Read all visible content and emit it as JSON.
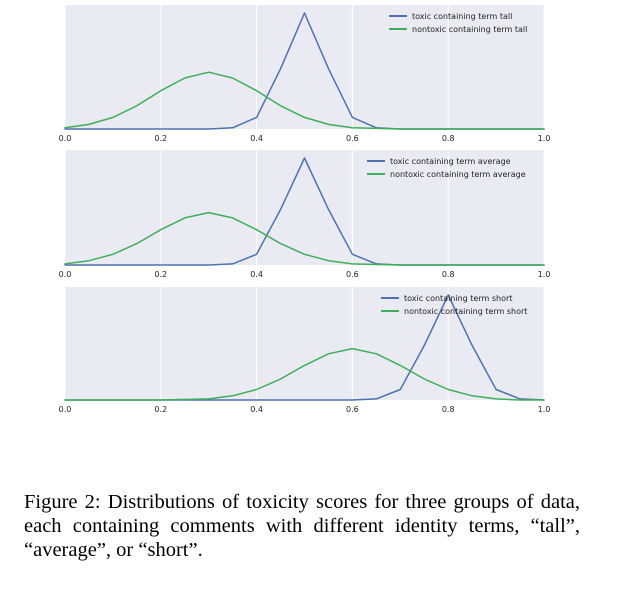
{
  "figure": {
    "caption": "Figure 2: Distributions of toxicity scores for three groups of data, each containing comments with different identity terms, “tall”, “average”, or “short”."
  },
  "colors": {
    "toxic": "#4c72b0",
    "nontoxic": "#3fae5a",
    "panel_bg": "#eaeaf2",
    "grid": "#ffffff"
  },
  "chart_data": [
    {
      "type": "line",
      "x_range": [
        0.0,
        1.0
      ],
      "xticks": [
        "0.0",
        "0.2",
        "0.4",
        "0.6",
        "0.8",
        "1.0"
      ],
      "xtick_values": [
        0.0,
        0.2,
        0.4,
        0.6,
        0.8,
        1.0
      ],
      "grid": true,
      "legend_position": "top-right",
      "series": [
        {
          "name": "toxic containing term tall",
          "color": "#4c72b0",
          "x": [
            0.0,
            0.1,
            0.2,
            0.3,
            0.35,
            0.4,
            0.45,
            0.5,
            0.55,
            0.6,
            0.65,
            0.7,
            0.8,
            0.9,
            1.0
          ],
          "y": [
            0.0,
            0.0,
            0.0,
            0.0,
            0.01,
            0.1,
            0.52,
            1.0,
            0.52,
            0.1,
            0.01,
            0.0,
            0.0,
            0.0,
            0.0
          ]
        },
        {
          "name": "nontoxic containing term tall",
          "color": "#3fae5a",
          "x": [
            0.0,
            0.05,
            0.1,
            0.15,
            0.2,
            0.25,
            0.3,
            0.35,
            0.4,
            0.45,
            0.5,
            0.55,
            0.6,
            0.7,
            0.8,
            0.9,
            1.0
          ],
          "y": [
            0.01,
            0.04,
            0.1,
            0.2,
            0.33,
            0.44,
            0.49,
            0.44,
            0.33,
            0.2,
            0.1,
            0.04,
            0.01,
            0.0,
            0.0,
            0.0,
            0.0
          ]
        }
      ]
    },
    {
      "type": "line",
      "x_range": [
        0.0,
        1.0
      ],
      "xticks": [
        "0.0",
        "0.2",
        "0.4",
        "0.6",
        "0.8",
        "1.0"
      ],
      "xtick_values": [
        0.0,
        0.2,
        0.4,
        0.6,
        0.8,
        1.0
      ],
      "grid": true,
      "legend_position": "top-right",
      "series": [
        {
          "name": "toxic containing term average",
          "color": "#4c72b0",
          "x": [
            0.0,
            0.1,
            0.2,
            0.3,
            0.35,
            0.4,
            0.45,
            0.5,
            0.55,
            0.6,
            0.65,
            0.7,
            0.8,
            0.9,
            1.0
          ],
          "y": [
            0.0,
            0.0,
            0.0,
            0.0,
            0.01,
            0.1,
            0.52,
            1.0,
            0.52,
            0.1,
            0.01,
            0.0,
            0.0,
            0.0,
            0.0
          ]
        },
        {
          "name": "nontoxic containing term average",
          "color": "#3fae5a",
          "x": [
            0.0,
            0.05,
            0.1,
            0.15,
            0.2,
            0.25,
            0.3,
            0.35,
            0.4,
            0.45,
            0.5,
            0.55,
            0.6,
            0.7,
            0.8,
            0.9,
            1.0
          ],
          "y": [
            0.01,
            0.04,
            0.1,
            0.2,
            0.33,
            0.44,
            0.49,
            0.44,
            0.33,
            0.2,
            0.1,
            0.04,
            0.01,
            0.0,
            0.0,
            0.0,
            0.0
          ]
        }
      ]
    },
    {
      "type": "line",
      "x_range": [
        0.0,
        1.0
      ],
      "xticks": [
        "0.0",
        "0.2",
        "0.4",
        "0.6",
        "0.8",
        "1.0"
      ],
      "xtick_values": [
        0.0,
        0.2,
        0.4,
        0.6,
        0.8,
        1.0
      ],
      "grid": true,
      "legend_position": "top-right",
      "series": [
        {
          "name": "toxic containing term short",
          "color": "#4c72b0",
          "x": [
            0.0,
            0.2,
            0.4,
            0.6,
            0.65,
            0.7,
            0.75,
            0.8,
            0.85,
            0.9,
            0.95,
            1.0
          ],
          "y": [
            0.0,
            0.0,
            0.0,
            0.0,
            0.01,
            0.1,
            0.52,
            1.0,
            0.52,
            0.1,
            0.01,
            0.0
          ]
        },
        {
          "name": "nontoxic containing term short",
          "color": "#3fae5a",
          "x": [
            0.0,
            0.2,
            0.3,
            0.35,
            0.4,
            0.45,
            0.5,
            0.55,
            0.6,
            0.65,
            0.7,
            0.75,
            0.8,
            0.85,
            0.9,
            0.95,
            1.0
          ],
          "y": [
            0.0,
            0.0,
            0.01,
            0.04,
            0.1,
            0.2,
            0.33,
            0.44,
            0.49,
            0.44,
            0.33,
            0.2,
            0.1,
            0.04,
            0.01,
            0.0,
            0.0
          ]
        }
      ]
    }
  ]
}
